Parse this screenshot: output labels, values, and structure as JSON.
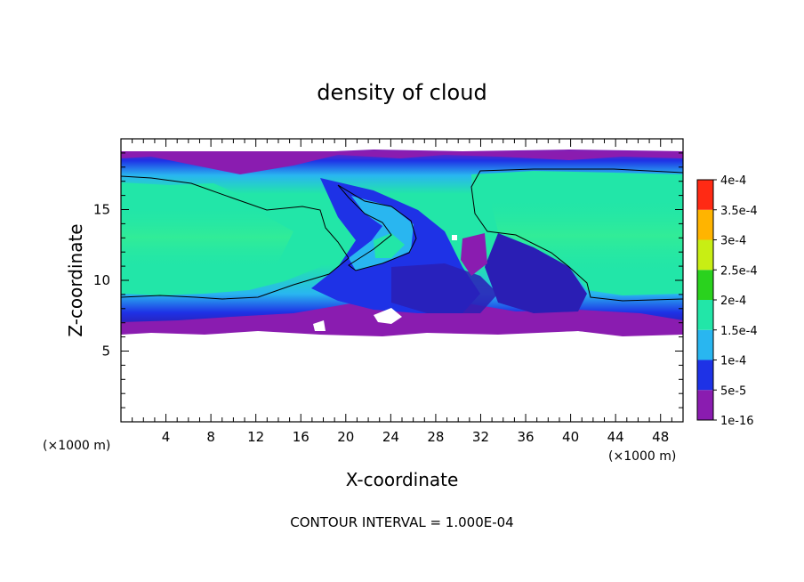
{
  "chart_data": {
    "type": "heatmap",
    "title": "density of cloud",
    "xlabel": "X-coordinate",
    "ylabel": "Z-coordinate",
    "x_unit_left": "(×1000 m)",
    "x_unit_right": "(×1000 m)",
    "footer": "CONTOUR INTERVAL = 1.000E-04",
    "xlim": [
      0,
      50
    ],
    "ylim": [
      0,
      20
    ],
    "x_ticks": [
      4,
      8,
      12,
      16,
      20,
      24,
      28,
      32,
      36,
      40,
      44,
      48
    ],
    "x_tick_labels": [
      "4",
      "8",
      "12",
      "16",
      "20",
      "24",
      "28",
      "32",
      "36",
      "40",
      "44",
      "48"
    ],
    "y_ticks": [
      5,
      10,
      15
    ],
    "y_tick_labels": [
      "5",
      "10",
      "15"
    ],
    "colorbar": {
      "levels": [
        {
          "label": "1e-16",
          "color": "#8a1cb0"
        },
        {
          "label": "5e-5",
          "color": "#1e32e6"
        },
        {
          "label": "1e-4",
          "color": "#29b6f0"
        },
        {
          "label": "1.5e-4",
          "color": "#22e6a8"
        },
        {
          "label": "2e-4",
          "color": "#2ad21e"
        },
        {
          "label": "2.5e-4",
          "color": "#c8ee14"
        },
        {
          "label": "3e-4",
          "color": "#ffb400"
        },
        {
          "label": "3.5e-4",
          "color": "#ff2a14"
        },
        {
          "label": "4e-4",
          "color": "#ff9a9a"
        }
      ]
    },
    "cloud_layer_z_range": [
      6.3,
      19.0
    ],
    "contour_level": "1e-4"
  }
}
